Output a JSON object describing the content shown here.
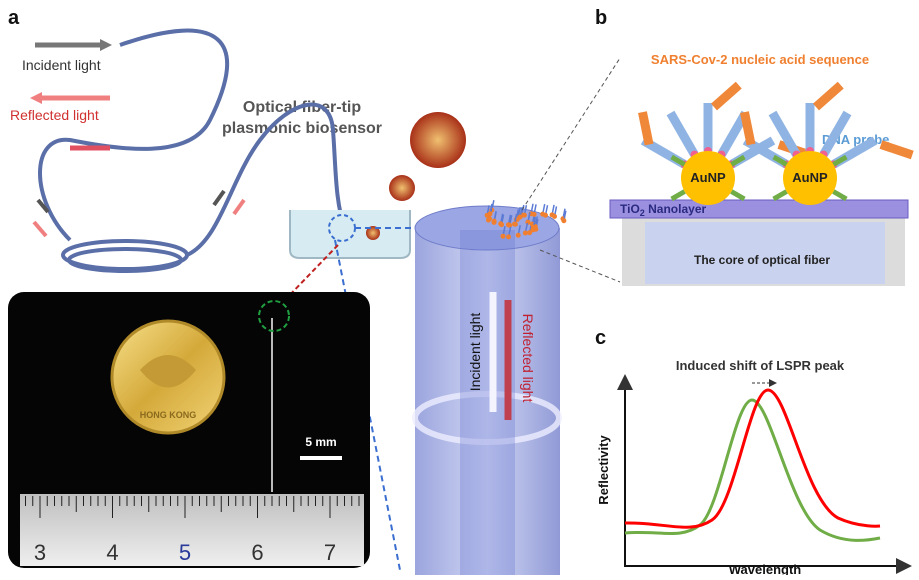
{
  "panel_a": {
    "label": "a",
    "incident_legend": "Incident light",
    "reflected_legend": "Reflected light",
    "title_line1": "Optical fiber-tip",
    "title_line2": "plasmonic biosensor",
    "coin_text": "HONG KONG",
    "scale_bar": "5 mm",
    "ruler_labels": [
      3,
      4,
      5,
      6,
      7
    ],
    "fiber_incident": "Incident light",
    "fiber_reflected": "Reflected light"
  },
  "panel_b": {
    "label": "b",
    "target": "SARS-Cov-2 nucleic acid sequence",
    "probe": "DNA probe",
    "particles": [
      "AuNP",
      "AuNP"
    ],
    "layer": {
      "prefix": "TiO",
      "sub": "2",
      "suffix": " Nanolayer"
    },
    "core": "The core of optical fiber"
  },
  "panel_c": {
    "label": "c",
    "title": "Induced shift of LSPR peak",
    "y_label": "Reflectivity",
    "x_label": "Wavelength"
  }
}
